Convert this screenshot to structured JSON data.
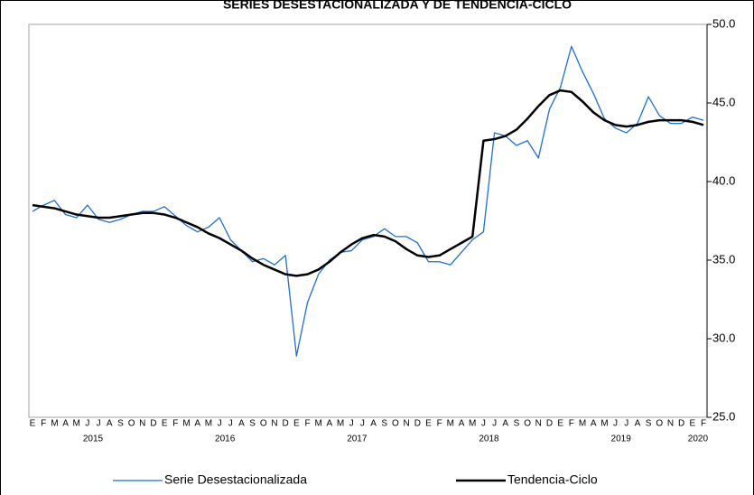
{
  "chart_data": {
    "type": "line",
    "title": "SERIES DESESTACIONALIZADA Y DE TENDENCIA-CICLO",
    "categories": [
      "E",
      "F",
      "M",
      "A",
      "M",
      "J",
      "J",
      "A",
      "S",
      "O",
      "N",
      "D",
      "E",
      "F",
      "M",
      "A",
      "M",
      "J",
      "J",
      "A",
      "S",
      "O",
      "N",
      "D",
      "E",
      "F",
      "M",
      "A",
      "M",
      "J",
      "J",
      "A",
      "S",
      "O",
      "N",
      "D",
      "E",
      "F",
      "M",
      "A",
      "M",
      "J",
      "J",
      "A",
      "S",
      "O",
      "N",
      "D",
      "E",
      "F",
      "M",
      "A",
      "M",
      "J",
      "J",
      "A",
      "S",
      "O",
      "N",
      "D",
      "E",
      "F"
    ],
    "x_groups": [
      "2015",
      "2016",
      "2017",
      "2018",
      "2019",
      "2020"
    ],
    "series": [
      {
        "name": "Serie Desestacionalizada",
        "color": "#1f6fd1",
        "values": [
          38.1,
          38.5,
          38.8,
          37.9,
          37.7,
          38.5,
          37.6,
          37.4,
          37.6,
          37.9,
          38.1,
          38.1,
          38.4,
          37.8,
          37.2,
          36.8,
          37.1,
          37.7,
          36.3,
          35.6,
          34.9,
          35.1,
          34.7,
          35.3,
          28.9,
          32.3,
          34.1,
          35.0,
          35.5,
          35.6,
          36.3,
          36.5,
          37.0,
          36.5,
          36.5,
          36.1,
          34.9,
          34.9,
          34.7,
          35.5,
          36.3,
          36.8,
          43.1,
          42.9,
          42.3,
          42.6,
          41.5,
          44.6,
          46.0,
          48.6,
          47.0,
          45.6,
          44.0,
          43.4,
          43.1,
          43.7,
          45.4,
          44.2,
          43.7,
          43.7,
          44.1,
          43.9
        ]
      },
      {
        "name": "Tendencia-Ciclo",
        "color": "#000000",
        "values": [
          38.5,
          38.4,
          38.3,
          38.1,
          37.9,
          37.8,
          37.7,
          37.7,
          37.8,
          37.9,
          38.0,
          38.0,
          37.9,
          37.7,
          37.4,
          37.1,
          36.7,
          36.4,
          36.0,
          35.6,
          35.1,
          34.7,
          34.4,
          34.1,
          34.0,
          34.1,
          34.4,
          34.9,
          35.5,
          36.0,
          36.4,
          36.6,
          36.5,
          36.2,
          35.7,
          35.3,
          35.2,
          35.3,
          35.7,
          36.1,
          36.5,
          42.6,
          42.7,
          42.9,
          43.3,
          44.0,
          44.8,
          45.5,
          45.8,
          45.7,
          45.1,
          44.4,
          43.9,
          43.6,
          43.5,
          43.6,
          43.8,
          43.9,
          43.9,
          43.9,
          43.8,
          43.6
        ]
      }
    ],
    "ylim": [
      25,
      50
    ],
    "yticks": [
      {
        "value": 25,
        "label": "25.0"
      },
      {
        "value": 30,
        "label": "30.0"
      },
      {
        "value": 35,
        "label": "35.0"
      },
      {
        "value": 40,
        "label": "40.0"
      },
      {
        "value": 45,
        "label": "45.0"
      },
      {
        "value": 50,
        "label": "50.0"
      }
    ]
  }
}
